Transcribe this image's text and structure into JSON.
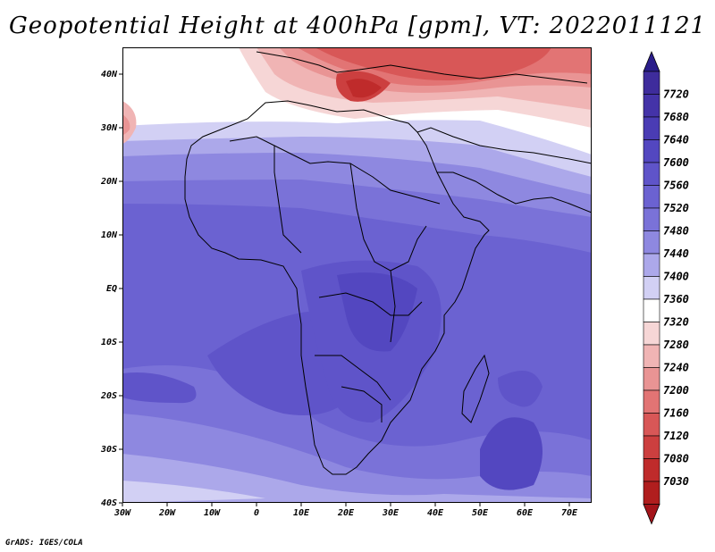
{
  "title": "Geopotential Height at 400hPa [gpm], VT: 2022011121",
  "footer": "GrADS: IGES/COLA",
  "map": {
    "projection": "latlon",
    "lon_range": [
      -30,
      75
    ],
    "lat_range": [
      -40,
      45
    ],
    "lon_ticks": [
      {
        "value": -30,
        "label": "30W"
      },
      {
        "value": -20,
        "label": "20W"
      },
      {
        "value": -10,
        "label": "10W"
      },
      {
        "value": 0,
        "label": "0"
      },
      {
        "value": 10,
        "label": "10E"
      },
      {
        "value": 20,
        "label": "20E"
      },
      {
        "value": 30,
        "label": "30E"
      },
      {
        "value": 40,
        "label": "40E"
      },
      {
        "value": 50,
        "label": "50E"
      },
      {
        "value": 60,
        "label": "60E"
      },
      {
        "value": 70,
        "label": "70E"
      }
    ],
    "lat_ticks": [
      {
        "value": 40,
        "label": "40N"
      },
      {
        "value": 30,
        "label": "30N"
      },
      {
        "value": 20,
        "label": "20N"
      },
      {
        "value": 10,
        "label": "10N"
      },
      {
        "value": 0,
        "label": "EQ"
      },
      {
        "value": -10,
        "label": "10S"
      },
      {
        "value": -20,
        "label": "20S"
      },
      {
        "value": -30,
        "label": "30S"
      },
      {
        "value": -40,
        "label": "40S"
      }
    ]
  },
  "colorbar": {
    "labels": [
      "7720",
      "7680",
      "7640",
      "7600",
      "7560",
      "7520",
      "7480",
      "7440",
      "7400",
      "7360",
      "7320",
      "7280",
      "7240",
      "7200",
      "7160",
      "7120",
      "7080",
      "7030"
    ],
    "colors": [
      "#3e2c9c",
      "#4433a8",
      "#4a3cb4",
      "#5347c0",
      "#5f54c9",
      "#6b62d1",
      "#7a72d8",
      "#8e88e0",
      "#aca8ea",
      "#d2d0f4",
      "#ffffff",
      "#f6d6d6",
      "#f0b4b4",
      "#e99494",
      "#e27474",
      "#d85757",
      "#cc3f3f",
      "#bf2b2b",
      "#b01e1e"
    ],
    "top_arrow_color": "#2a1d8a",
    "bottom_arrow_color": "#a3141a"
  },
  "field_regions": [
    {
      "name": "high-south-atlantic",
      "value": 7600
    },
    {
      "name": "high-central-africa",
      "value": 7600
    },
    {
      "name": "high-indian-ocean",
      "value": 7620
    },
    {
      "name": "low-mediterranean",
      "value": 7060
    }
  ]
}
